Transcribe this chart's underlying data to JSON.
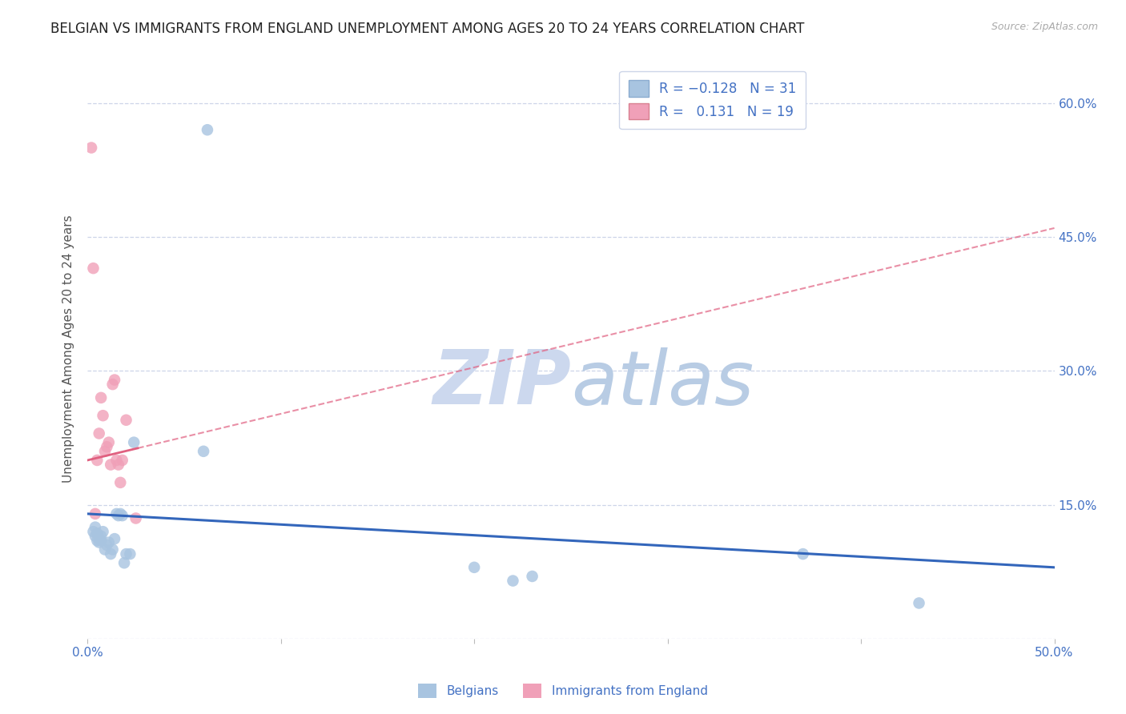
{
  "title": "BELGIAN VS IMMIGRANTS FROM ENGLAND UNEMPLOYMENT AMONG AGES 20 TO 24 YEARS CORRELATION CHART",
  "source": "Source: ZipAtlas.com",
  "ylabel": "Unemployment Among Ages 20 to 24 years",
  "xlim": [
    0.0,
    0.5
  ],
  "ylim": [
    0.0,
    0.65
  ],
  "yticks": [
    0.0,
    0.15,
    0.3,
    0.45,
    0.6
  ],
  "ytick_labels": [
    "",
    "15.0%",
    "30.0%",
    "45.0%",
    "60.0%"
  ],
  "xticks": [
    0.0,
    0.1,
    0.2,
    0.3,
    0.4,
    0.5
  ],
  "xtick_labels": [
    "0.0%",
    "",
    "",
    "",
    "",
    "50.0%"
  ],
  "belgians_x": [
    0.003,
    0.004,
    0.004,
    0.005,
    0.005,
    0.006,
    0.006,
    0.007,
    0.007,
    0.008,
    0.009,
    0.01,
    0.011,
    0.012,
    0.013,
    0.014,
    0.015,
    0.016,
    0.017,
    0.018,
    0.019,
    0.02,
    0.022,
    0.024,
    0.06,
    0.062,
    0.2,
    0.22,
    0.23,
    0.37,
    0.43
  ],
  "belgians_y": [
    0.12,
    0.125,
    0.115,
    0.118,
    0.11,
    0.112,
    0.108,
    0.115,
    0.11,
    0.12,
    0.1,
    0.105,
    0.108,
    0.095,
    0.1,
    0.112,
    0.14,
    0.138,
    0.14,
    0.138,
    0.085,
    0.095,
    0.095,
    0.22,
    0.21,
    0.57,
    0.08,
    0.065,
    0.07,
    0.095,
    0.04
  ],
  "immigrants_x": [
    0.002,
    0.003,
    0.004,
    0.005,
    0.006,
    0.007,
    0.008,
    0.009,
    0.01,
    0.011,
    0.012,
    0.013,
    0.014,
    0.015,
    0.016,
    0.017,
    0.018,
    0.02,
    0.025
  ],
  "immigrants_y": [
    0.55,
    0.415,
    0.14,
    0.2,
    0.23,
    0.27,
    0.25,
    0.21,
    0.215,
    0.22,
    0.195,
    0.285,
    0.29,
    0.2,
    0.195,
    0.175,
    0.2,
    0.245,
    0.135
  ],
  "belgians_R": -0.128,
  "belgians_N": 31,
  "immigrants_R": 0.131,
  "immigrants_N": 19,
  "blue_scatter_color": "#a8c4e0",
  "pink_scatter_color": "#f0a0b8",
  "blue_line_color": "#3366bb",
  "pink_line_color": "#e06080",
  "blue_text_color": "#4472c4",
  "watermark_color": "#ccd8ee",
  "background_color": "#ffffff",
  "grid_color": "#cdd5e8",
  "title_fontsize": 12,
  "axis_label_fontsize": 11,
  "tick_fontsize": 11,
  "legend_fontsize": 12,
  "blue_line_start_y": 0.14,
  "blue_line_end_y": 0.08,
  "pink_line_start_y": 0.2,
  "pink_line_end_y": 0.46
}
